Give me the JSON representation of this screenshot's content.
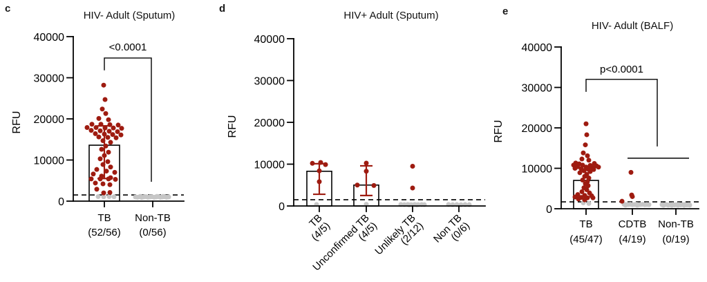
{
  "colors": {
    "dot_red": "#9E1B10",
    "dot_gray": "#C6C6C6",
    "axis": "#000000",
    "bar_fill": "#FFFFFF",
    "error_bar": "#9E1B10"
  },
  "chart_data": [
    {
      "id": "c",
      "type": "scatter-bar",
      "panel_letter": "c",
      "title": "HIV- Adult (Sputum)",
      "ylabel": "RFU",
      "ylim": [
        0,
        40000
      ],
      "yticks": [
        0,
        10000,
        20000,
        30000,
        40000
      ],
      "cutoff_rfu": 1500,
      "grid": false,
      "groups": [
        {
          "label": "TB",
          "count": "(52/56)",
          "bar_mean": 13600,
          "error_range": [
            5500,
            18300
          ],
          "dots_red": [
            [
              -1,
              28200
            ],
            [
              1,
              24700
            ],
            [
              -3,
              22400
            ],
            [
              2,
              21300
            ],
            [
              -8,
              20100
            ],
            [
              6,
              19800
            ],
            [
              -18,
              18700
            ],
            [
              -5,
              18700
            ],
            [
              8,
              18600
            ],
            [
              20,
              18500
            ],
            [
              -25,
              17900
            ],
            [
              -12,
              17900
            ],
            [
              1,
              17800
            ],
            [
              13,
              17800
            ],
            [
              25,
              17700
            ],
            [
              -19,
              17200
            ],
            [
              -6,
              17100
            ],
            [
              7,
              17000
            ],
            [
              19,
              16900
            ],
            [
              -13,
              16400
            ],
            [
              0,
              16300
            ],
            [
              12,
              16200
            ],
            [
              24,
              16100
            ],
            [
              -8,
              15600
            ],
            [
              5,
              15500
            ],
            [
              17,
              15400
            ],
            [
              -2,
              14700
            ],
            [
              9,
              14300
            ],
            [
              2,
              13400
            ],
            [
              -4,
              12600
            ],
            [
              6,
              11900
            ],
            [
              0,
              11100
            ],
            [
              -6,
              10300
            ],
            [
              5,
              9600
            ],
            [
              -2,
              8900
            ],
            [
              9,
              8300
            ],
            [
              -11,
              7700
            ],
            [
              3,
              7300
            ],
            [
              15,
              7000
            ],
            [
              -16,
              6600
            ],
            [
              -4,
              6100
            ],
            [
              9,
              5700
            ],
            [
              -19,
              5400
            ],
            [
              -6,
              5400
            ],
            [
              6,
              5400
            ],
            [
              16,
              5300
            ],
            [
              -13,
              4400
            ],
            [
              -2,
              4200
            ],
            [
              8,
              4000
            ],
            [
              -11,
              2900
            ],
            [
              -1,
              2000
            ],
            [
              8,
              2100
            ]
          ],
          "dots_gray": [
            [
              -9,
              1100
            ],
            [
              -1,
              1050
            ],
            [
              7,
              1100
            ],
            [
              14,
              1050
            ]
          ]
        },
        {
          "label": "Non-TB",
          "count": "(0/56)",
          "bar_mean": null,
          "error_range": null,
          "dots_red": [],
          "dots_gray": [
            [
              -25,
              1000
            ],
            [
              -22,
              950
            ],
            [
              -19,
              1050
            ],
            [
              -16,
              900
            ],
            [
              -13,
              1000
            ],
            [
              -10,
              1100
            ],
            [
              -7,
              950
            ],
            [
              -4,
              1000
            ],
            [
              -1,
              1050
            ],
            [
              2,
              950
            ],
            [
              5,
              1000
            ],
            [
              8,
              1100
            ],
            [
              11,
              950
            ],
            [
              14,
              1000
            ],
            [
              17,
              1050
            ],
            [
              20,
              950
            ],
            [
              23,
              1000
            ],
            [
              -18,
              1150
            ],
            [
              6,
              1150
            ],
            [
              15,
              1150
            ]
          ]
        }
      ],
      "significance": {
        "label": "<0.0001",
        "bar_rfu": 34800,
        "left_drop_rfu": 31800,
        "right_drop_rfu": 4700,
        "label_rfu": 36600
      }
    },
    {
      "id": "d",
      "type": "scatter-bar",
      "panel_letter": "d",
      "title": "HIV+ Adult (Sputum)",
      "ylabel": "RFU",
      "ylim": [
        0,
        40000
      ],
      "yticks": [
        0,
        10000,
        20000,
        30000,
        40000
      ],
      "cutoff_rfu": 1500,
      "grid": false,
      "groups": [
        {
          "label": "TB",
          "count": "(4/5)",
          "bar_mean": 8300,
          "error_range": [
            2800,
            10100
          ],
          "dots_red": [
            [
              -10,
              10200
            ],
            [
              2,
              10400
            ],
            [
              9,
              9900
            ],
            [
              0,
              8400
            ],
            [
              0,
              5800
            ]
          ],
          "dots_gray": [
            [
              -4,
              350
            ]
          ]
        },
        {
          "label": "Unconfirmed TB",
          "count": "(4/5)",
          "bar_mean": 5000,
          "error_range": [
            2500,
            9600
          ],
          "dots_red": [
            [
              0,
              10250
            ],
            [
              0,
              8300
            ],
            [
              -13,
              5000
            ],
            [
              11,
              4900
            ]
          ],
          "dots_gray": [
            [
              0,
              400
            ]
          ]
        },
        {
          "label": "Unlikely TB",
          "count": "(2/12)",
          "bar_mean": null,
          "error_range": null,
          "dots_red": [
            [
              0,
              9500
            ],
            [
              0,
              4300
            ]
          ],
          "dots_gray": [
            [
              -17,
              350
            ],
            [
              -12,
              300
            ],
            [
              -7,
              350
            ],
            [
              -2,
              300
            ],
            [
              3,
              350
            ],
            [
              8,
              300
            ],
            [
              13,
              340
            ],
            [
              17,
              300
            ],
            [
              -5,
              250
            ],
            [
              6,
              250
            ]
          ]
        },
        {
          "label": "Non TB",
          "count": "(0/6)",
          "bar_mean": null,
          "error_range": null,
          "dots_red": [],
          "dots_gray": [
            [
              -15,
              350
            ],
            [
              -9,
              300
            ],
            [
              -3,
              340
            ],
            [
              3,
              290
            ],
            [
              9,
              330
            ],
            [
              15,
              300
            ]
          ]
        }
      ],
      "significance": null
    },
    {
      "id": "e",
      "type": "scatter-bar",
      "panel_letter": "e",
      "title": "HIV- Adult (BALF)",
      "ylabel": "RFU",
      "ylim": [
        0,
        40000
      ],
      "yticks": [
        0,
        10000,
        20000,
        30000,
        40000
      ],
      "cutoff_rfu": 1700,
      "grid": false,
      "groups": [
        {
          "label": "TB",
          "count": "(45/47)",
          "bar_mean": 7000,
          "error_range": null,
          "dots_red": [
            [
              0,
              21000
            ],
            [
              1,
              18300
            ],
            [
              -1,
              15800
            ],
            [
              -4,
              13800
            ],
            [
              2,
              13100
            ],
            [
              -6,
              12300
            ],
            [
              4,
              12000
            ],
            [
              -15,
              11300
            ],
            [
              12,
              11200
            ],
            [
              -10,
              11100
            ],
            [
              -18,
              10800
            ],
            [
              -5,
              10800
            ],
            [
              6,
              10700
            ],
            [
              15,
              10600
            ],
            [
              -12,
              10400
            ],
            [
              0,
              10300
            ],
            [
              9,
              10200
            ],
            [
              18,
              10300
            ],
            [
              -16,
              10000
            ],
            [
              -7,
              9900
            ],
            [
              3,
              9800
            ],
            [
              11,
              9700
            ],
            [
              -3,
              9400
            ],
            [
              6,
              9200
            ],
            [
              -9,
              8900
            ],
            [
              1,
              8500
            ],
            [
              -2,
              8000
            ],
            [
              4,
              7600
            ],
            [
              -5,
              7100
            ],
            [
              2,
              6700
            ],
            [
              -1,
              6200
            ],
            [
              3,
              5700
            ],
            [
              -3,
              5200
            ],
            [
              1,
              4700
            ],
            [
              -6,
              4200
            ],
            [
              5,
              3900
            ],
            [
              -12,
              3500
            ],
            [
              -2,
              3300
            ],
            [
              8,
              3200
            ],
            [
              -16,
              2900
            ],
            [
              -7,
              2800
            ],
            [
              2,
              2700
            ],
            [
              10,
              2700
            ],
            [
              -11,
              2400
            ],
            [
              -2,
              2200
            ]
          ],
          "dots_gray": [
            [
              -4,
              1450
            ],
            [
              4,
              1300
            ]
          ]
        },
        {
          "label": "CDTB",
          "count": "(4/19)",
          "bar_mean": null,
          "error_range": null,
          "dots_red": [
            [
              -2,
              9000
            ],
            [
              -1,
              3400
            ],
            [
              0,
              3000
            ],
            [
              -15,
              1850
            ]
          ],
          "dots_gray": [
            [
              -12,
              1100
            ],
            [
              -9,
              1000
            ],
            [
              -6,
              1050
            ],
            [
              -3,
              1100
            ],
            [
              0,
              1000
            ],
            [
              3,
              1050
            ],
            [
              6,
              1100
            ],
            [
              9,
              1000
            ],
            [
              12,
              1050
            ],
            [
              15,
              1100
            ],
            [
              18,
              1000
            ],
            [
              21,
              1050
            ],
            [
              24,
              1000
            ],
            [
              -10,
              900
            ],
            [
              7,
              900
            ]
          ]
        },
        {
          "label": "Non-TB",
          "count": "(0/19)",
          "bar_mean": null,
          "error_range": null,
          "dots_red": [],
          "dots_gray": [
            [
              -20,
              1000
            ],
            [
              -17,
              950
            ],
            [
              -14,
              1050
            ],
            [
              -11,
              900
            ],
            [
              -8,
              1000
            ],
            [
              -5,
              1050
            ],
            [
              -2,
              950
            ],
            [
              1,
              1000
            ],
            [
              4,
              1050
            ],
            [
              7,
              950
            ],
            [
              10,
              1000
            ],
            [
              13,
              1050
            ],
            [
              16,
              950
            ],
            [
              19,
              1000
            ],
            [
              -18,
              850
            ],
            [
              -6,
              850
            ],
            [
              3,
              850
            ],
            [
              12,
              850
            ],
            [
              20,
              900
            ]
          ]
        }
      ],
      "significance": {
        "label": "p<0.0001",
        "bar_rfu": 32000,
        "left_drop_rfu": 28900,
        "right_drop_rfu": 15400,
        "label_rfu": 33700,
        "group_line_rfu": 12500
      }
    }
  ]
}
